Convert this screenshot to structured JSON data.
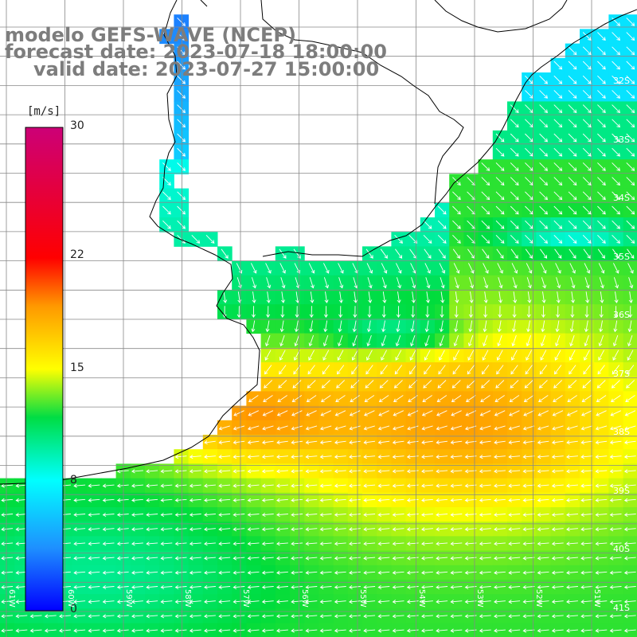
{
  "title": {
    "line1": "modelo GEFS-WAVE (NCEP)",
    "line2": "forecast date: 2023-07-18 18:00:00",
    "line3": "valid date: 2023-07-27 15:00:00"
  },
  "colorbar": {
    "unit": "[m/s]",
    "ticks": [
      {
        "value": 30,
        "label": "30"
      },
      {
        "value": 22,
        "label": "22"
      },
      {
        "value": 15,
        "label": "15"
      },
      {
        "value": 8,
        "label": "8"
      },
      {
        "value": 0,
        "label": "0"
      }
    ],
    "min": 0,
    "max": 30
  },
  "axes": {
    "lat_labels": [
      "32S",
      "33S",
      "34S",
      "35S",
      "36S",
      "37S",
      "38S",
      "39S",
      "40S",
      "41S"
    ],
    "lon_labels": [
      "61W",
      "60W",
      "59W",
      "58W",
      "57W",
      "56W",
      "55W",
      "54W",
      "53W",
      "52W",
      "51W"
    ]
  },
  "colors": {
    "wind_vectors": "#ffffff",
    "coastline": "#000000",
    "grid": "#888888",
    "title": "#7d7d7d"
  }
}
